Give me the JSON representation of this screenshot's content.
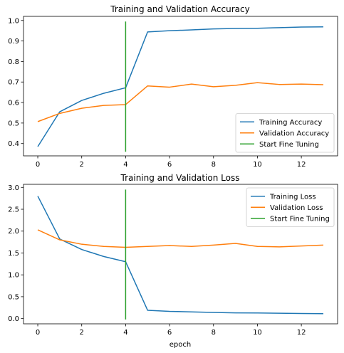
{
  "chart_data": [
    {
      "type": "line",
      "title": "Training and Validation Accuracy",
      "xlabel": "",
      "ylabel": "",
      "xlim": [
        -0.65,
        13.65
      ],
      "ylim": [
        0.34,
        1.02
      ],
      "xticks": [
        0,
        2,
        4,
        6,
        8,
        10,
        12
      ],
      "xtick_labels": [
        "0",
        "2",
        "4",
        "6",
        "8",
        "10",
        "12"
      ],
      "yticks": [
        0.4,
        0.5,
        0.6,
        0.7,
        0.8,
        0.9,
        1.0
      ],
      "ytick_labels": [
        "0.4",
        "0.5",
        "0.6",
        "0.7",
        "0.8",
        "0.9",
        "1.0"
      ],
      "grid": false,
      "legend_position": "lower-right",
      "series": [
        {
          "name": "Training Accuracy",
          "color": "#1f77b4",
          "x": [
            0,
            1,
            2,
            3,
            4,
            5,
            6,
            7,
            8,
            9,
            10,
            11,
            12,
            13
          ],
          "y": [
            0.385,
            0.555,
            0.61,
            0.645,
            0.672,
            0.944,
            0.95,
            0.954,
            0.959,
            0.961,
            0.962,
            0.965,
            0.968,
            0.969
          ]
        },
        {
          "name": "Validation Accuracy",
          "color": "#ff7f0e",
          "x": [
            0,
            1,
            2,
            3,
            4,
            5,
            6,
            7,
            8,
            9,
            10,
            11,
            12,
            13
          ],
          "y": [
            0.507,
            0.547,
            0.572,
            0.586,
            0.59,
            0.681,
            0.675,
            0.69,
            0.677,
            0.684,
            0.697,
            0.688,
            0.69,
            0.687
          ]
        },
        {
          "name": "Start Fine Tuning",
          "color": "#2ca02c",
          "x": [
            4,
            4
          ],
          "y": [
            0.36,
            0.995
          ]
        }
      ]
    },
    {
      "type": "line",
      "title": "Training and Validation Loss",
      "xlabel": "epoch",
      "ylabel": "",
      "xlim": [
        -0.65,
        13.65
      ],
      "ylim": [
        -0.12,
        3.07
      ],
      "xticks": [
        0,
        2,
        4,
        6,
        8,
        10,
        12
      ],
      "xtick_labels": [
        "0",
        "2",
        "4",
        "6",
        "8",
        "10",
        "12"
      ],
      "yticks": [
        0.0,
        0.5,
        1.0,
        1.5,
        2.0,
        2.5,
        3.0
      ],
      "ytick_labels": [
        "0.0",
        "0.5",
        "1.0",
        "1.5",
        "2.0",
        "2.5",
        "3.0"
      ],
      "grid": false,
      "legend_position": "upper-right",
      "series": [
        {
          "name": "Training Loss",
          "color": "#1f77b4",
          "x": [
            0,
            1,
            2,
            3,
            4,
            5,
            6,
            7,
            8,
            9,
            10,
            11,
            12,
            13
          ],
          "y": [
            2.8,
            1.82,
            1.58,
            1.42,
            1.3,
            0.19,
            0.165,
            0.152,
            0.14,
            0.13,
            0.128,
            0.122,
            0.115,
            0.112
          ]
        },
        {
          "name": "Validation Loss",
          "color": "#ff7f0e",
          "x": [
            0,
            1,
            2,
            3,
            4,
            5,
            6,
            7,
            8,
            9,
            10,
            11,
            12,
            13
          ],
          "y": [
            2.03,
            1.8,
            1.7,
            1.65,
            1.63,
            1.65,
            1.67,
            1.65,
            1.68,
            1.72,
            1.65,
            1.64,
            1.66,
            1.68
          ]
        },
        {
          "name": "Start Fine Tuning",
          "color": "#2ca02c",
          "x": [
            4,
            4
          ],
          "y": [
            -0.02,
            2.95
          ]
        }
      ]
    }
  ]
}
